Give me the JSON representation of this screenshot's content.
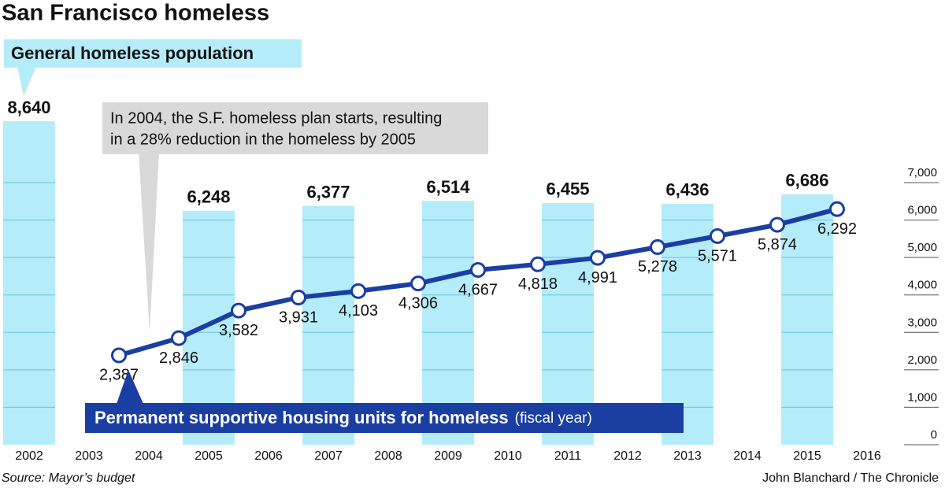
{
  "chart_data": {
    "type": "bar",
    "title": "San Francisco homeless",
    "annotation": [
      "In 2004, the S.F. homeless plan starts, resulting",
      "in a 28% reduction in the homeless by 2005"
    ],
    "source": "Source: Mayor’s budget",
    "credit": "John Blanchard / The Chronicle",
    "xlim": [
      2002,
      2016
    ],
    "xticks": [
      2002,
      2003,
      2004,
      2005,
      2006,
      2007,
      2008,
      2009,
      2010,
      2011,
      2012,
      2013,
      2014,
      2015,
      2016
    ],
    "ylim": [
      0,
      7000
    ],
    "yticks": [
      0,
      {
        "value": 1000,
        "label": "1,000"
      },
      {
        "value": 2000,
        "label": "2,000"
      },
      {
        "value": 3000,
        "label": "3,000"
      },
      {
        "value": 4000,
        "label": "4,000"
      },
      {
        "value": 5000,
        "label": "5,000"
      },
      {
        "value": 6000,
        "label": "6,000"
      },
      {
        "value": 7000,
        "label": "7,000"
      }
    ],
    "grid": true,
    "series": [
      {
        "name": "General homeless population",
        "type": "bar",
        "color": "#b5ecfa",
        "x": [
          2002,
          2005,
          2007,
          2009,
          2011,
          2013,
          2015
        ],
        "values": [
          8640,
          6248,
          6377,
          6514,
          6455,
          6436,
          6686
        ],
        "value_labels": [
          "8,640",
          "6,248",
          "6,377",
          "6,514",
          "6,455",
          "6,436",
          "6,686"
        ]
      },
      {
        "name": "Permanent supportive housing units for homeless",
        "qualifier": "(fiscal year)",
        "type": "line",
        "color": "#1b3ea3",
        "x": [
          2003.5,
          2004.5,
          2005.5,
          2006.5,
          2007.5,
          2008.5,
          2009.5,
          2010.5,
          2011.5,
          2012.5,
          2013.5,
          2014.5,
          2015.5
        ],
        "values": [
          2387,
          2846,
          3582,
          3931,
          4103,
          4306,
          4667,
          4818,
          4991,
          5278,
          5571,
          5874,
          6292
        ],
        "value_labels": [
          "2,387",
          "2,846",
          "3,582",
          "3,931",
          "4,103",
          "4,306",
          "4,667",
          "4,818",
          "4,991",
          "5,278",
          "5,571",
          "5,874",
          "6,292"
        ]
      }
    ]
  }
}
